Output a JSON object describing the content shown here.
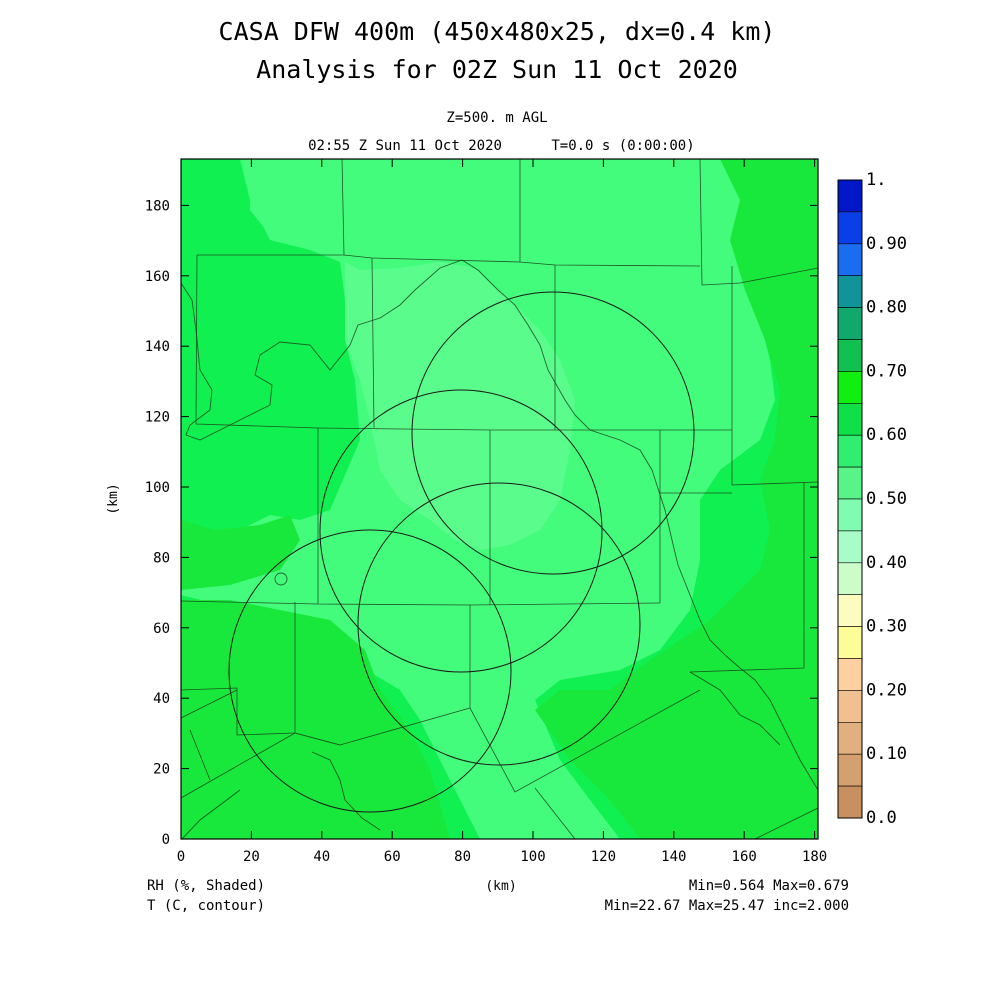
{
  "title_line1": "CASA DFW 400m (450x480x25, dx=0.4 km)",
  "title_line2": "Analysis for 02Z Sun 11 Oct 2020",
  "level": "Z=500. m AGL",
  "valid_time": "02:55 Z Sun 11 Oct 2020",
  "forecast_time": "T=0.0 s (0:00:00)",
  "x_axis_label": "(km)",
  "y_axis_label": "(km)",
  "x_ticks": [
    "0",
    "20",
    "40",
    "60",
    "80",
    "100",
    "120",
    "140",
    "160",
    "180"
  ],
  "y_ticks": [
    "0",
    "20",
    "40",
    "60",
    "80",
    "100",
    "120",
    "140",
    "160",
    "180"
  ],
  "shaded_field_label": "RH (%, Shaded)",
  "contour_field_label": "T (C, contour)",
  "shaded_stats": "Min=0.564 Max=0.679",
  "contour_stats": "Min=22.67 Max=25.47 inc=2.000",
  "colorbar": {
    "labels": [
      "1.",
      "0.90",
      "0.80",
      "0.70",
      "0.60",
      "0.50",
      "0.40",
      "0.30",
      "0.20",
      "0.10",
      "0.0"
    ],
    "colors_top_to_bottom": [
      "#0018c8",
      "#0a3ee6",
      "#1a6cf0",
      "#10949a",
      "#10a86c",
      "#10c050",
      "#10f010",
      "#10e048",
      "#30ee70",
      "#58f488",
      "#80fcb0",
      "#a8fcc8",
      "#ccfcc8",
      "#fcfcc0",
      "#fcfc98",
      "#fcd0a0",
      "#f0c090",
      "#e0b080",
      "#d4a070",
      "#c89060"
    ]
  },
  "map": {
    "x_range_km": [
      0,
      181
    ],
    "y_range_km": [
      0,
      193
    ],
    "radar_range_rings_km": [
      {
        "cx": 105,
        "cy": 116,
        "r": 40
      },
      {
        "cx": 80,
        "cy": 88,
        "r": 40
      },
      {
        "cx": 90,
        "cy": 61,
        "r": 40
      },
      {
        "cx": 53,
        "cy": 47,
        "r": 40
      }
    ],
    "field_colors": {
      "base": "#10f050",
      "lighter": "#44fc7c",
      "lightest": "#5afc8c",
      "darker": "#18e83c"
    }
  }
}
